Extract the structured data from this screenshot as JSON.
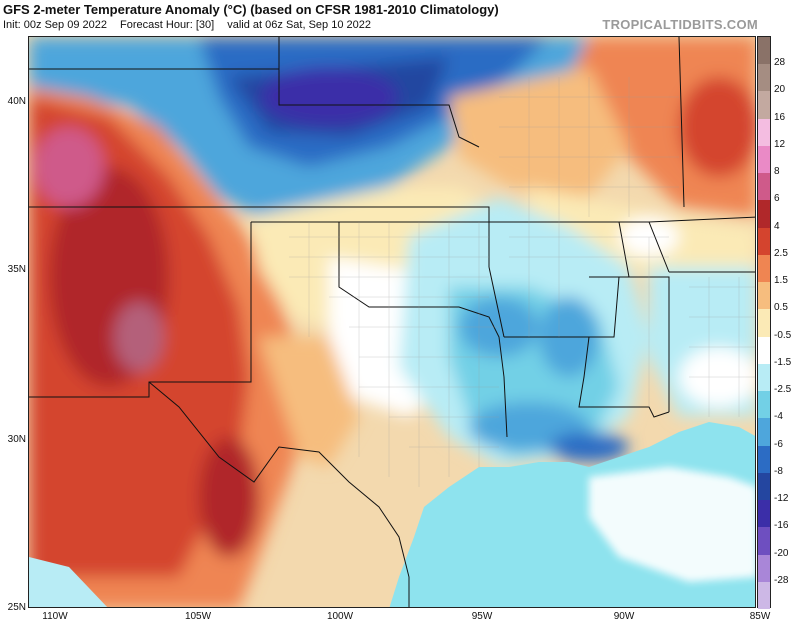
{
  "header": {
    "title": "GFS 2-meter Temperature Anomaly (°C) (based on CFSR 1981-2010 Climatology)",
    "init": "Init: 00z Sep 09 2022",
    "forecast_hour": "Forecast Hour: [30]",
    "valid": "valid at 06z Sat, Sep 10 2022",
    "brand": "TROPICALTIDBITS.COM"
  },
  "axes": {
    "lat_labels": [
      "40N",
      "35N",
      "30N",
      "25N"
    ],
    "lon_labels": [
      "110W",
      "105W",
      "100W",
      "95W",
      "90W",
      "85W"
    ]
  },
  "colorbar": {
    "labels": [
      "28",
      "20",
      "16",
      "12",
      "8",
      "6",
      "4",
      "2.5",
      "1.5",
      "0.5",
      "-0.5",
      "-1.5",
      "-2.5",
      "-4",
      "-6",
      "-8",
      "-12",
      "-16",
      "-20",
      "-28"
    ],
    "colors": [
      "#8a7268",
      "#a58d82",
      "#c3a9a0",
      "#f4bde1",
      "#ea8ac6",
      "#cf5a8a",
      "#b0282a",
      "#d4442e",
      "#ef8552",
      "#f6bd7e",
      "#fbeab6",
      "#ffffff",
      "#b8ecf5",
      "#72d0e6",
      "#4ea6dc",
      "#2c6cc4",
      "#2446a0",
      "#3b2ea8",
      "#6e4fc0",
      "#a986d8",
      "#cdb8e6"
    ]
  },
  "map": {
    "ocean_color": "#8ee3ee",
    "land_base_color": "#f3d9ae"
  }
}
